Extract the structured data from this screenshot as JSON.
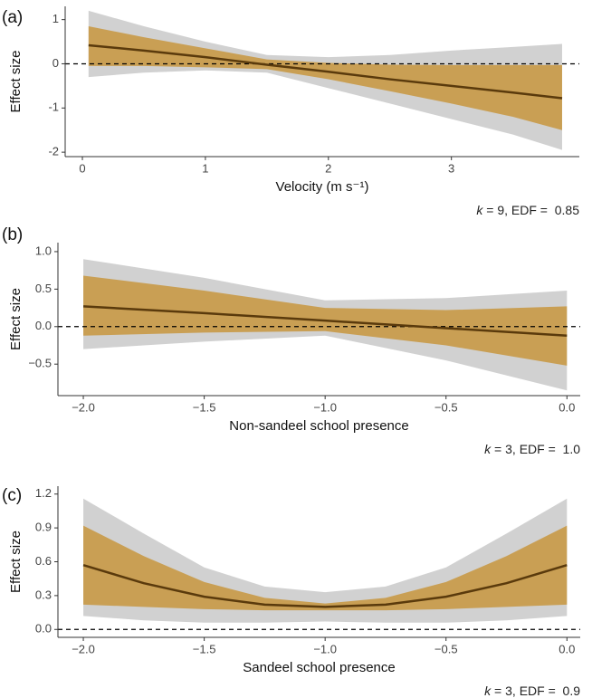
{
  "chart_data": [
    {
      "type": "line",
      "panel_label": "(a)",
      "y_label": "Effect size",
      "x_label": "Velocity (m s⁻¹)",
      "annotation": [
        "k",
        " = 9, EDF =  0.85"
      ],
      "x": [
        0.05,
        0.5,
        1,
        1.5,
        2,
        2.5,
        3,
        3.5,
        3.9
      ],
      "bands": [
        {
          "color": "#bdbdbd",
          "lower": [
            -0.3,
            -0.2,
            -0.15,
            -0.2,
            -0.55,
            -0.9,
            -1.25,
            -1.6,
            -1.95
          ],
          "upper": [
            1.2,
            0.85,
            0.5,
            0.2,
            0.15,
            0.2,
            0.3,
            0.38,
            0.45
          ]
        },
        {
          "color": "#c8963e",
          "lower": [
            -0.05,
            -0.05,
            -0.08,
            -0.12,
            -0.35,
            -0.62,
            -0.9,
            -1.2,
            -1.5
          ],
          "upper": [
            0.85,
            0.6,
            0.35,
            0.1,
            0.02,
            -0.02,
            -0.03,
            -0.03,
            -0.03
          ]
        }
      ],
      "series": [
        {
          "color": "#5a3a0c",
          "values": [
            0.42,
            0.3,
            0.15,
            -0.02,
            -0.18,
            -0.35,
            -0.5,
            -0.65,
            -0.78
          ]
        }
      ],
      "reference_line": 0,
      "xlim": [
        -0.14,
        4.04
      ],
      "ylim": [
        -2.1,
        1.3
      ],
      "xticks": [
        0,
        1,
        2,
        3
      ],
      "yticks": [
        -2,
        -1,
        0,
        1
      ]
    },
    {
      "type": "line",
      "panel_label": "(b)",
      "y_label": "Effect size",
      "x_label": "Non-sandeel school presence",
      "annotation": [
        "k",
        " = 3, EDF =  1.0"
      ],
      "x": [
        -2,
        -1.5,
        -1,
        -0.5,
        0
      ],
      "bands": [
        {
          "color": "#bdbdbd",
          "lower": [
            -0.3,
            -0.2,
            -0.12,
            -0.45,
            -0.85
          ],
          "upper": [
            0.9,
            0.65,
            0.35,
            0.38,
            0.48
          ]
        },
        {
          "color": "#c8963e",
          "lower": [
            -0.12,
            -0.08,
            -0.06,
            -0.25,
            -0.52
          ],
          "upper": [
            0.68,
            0.48,
            0.25,
            0.22,
            0.27
          ]
        }
      ],
      "series": [
        {
          "color": "#5a3a0c",
          "values": [
            0.27,
            0.18,
            0.08,
            -0.02,
            -0.12
          ]
        }
      ],
      "reference_line": 0,
      "xlim": [
        -2.105,
        0.055
      ],
      "ylim": [
        -0.92,
        1.12
      ],
      "xticks": [
        {
          "value": -2,
          "label": "−2.0"
        },
        {
          "value": -1.5,
          "label": "−1.5"
        },
        {
          "value": -1,
          "label": "−1.0"
        },
        {
          "value": -0.5,
          "label": "−0.5"
        },
        {
          "value": 0,
          "label": "0.0"
        }
      ],
      "yticks": [
        {
          "value": -0.5,
          "label": "−0.5"
        },
        {
          "value": 0,
          "label": "0.0"
        },
        {
          "value": 0.5,
          "label": "0.5"
        },
        {
          "value": 1,
          "label": "1.0"
        }
      ]
    },
    {
      "type": "line",
      "panel_label": "(c)",
      "y_label": "Effect size",
      "x_label": "Sandeel school presence",
      "annotation": [
        "k",
        " = 3, EDF =  0.9"
      ],
      "x": [
        -2,
        -1.75,
        -1.5,
        -1.25,
        -1,
        -0.75,
        -0.5,
        -0.25,
        0
      ],
      "bands": [
        {
          "color": "#bdbdbd",
          "lower": [
            0.12,
            0.08,
            0.06,
            0.06,
            0.07,
            0.06,
            0.06,
            0.08,
            0.12
          ],
          "upper": [
            1.16,
            0.85,
            0.55,
            0.38,
            0.33,
            0.38,
            0.55,
            0.85,
            1.16
          ]
        },
        {
          "color": "#c8963e",
          "lower": [
            0.22,
            0.2,
            0.18,
            0.17,
            0.17,
            0.17,
            0.18,
            0.2,
            0.22
          ],
          "upper": [
            0.92,
            0.65,
            0.42,
            0.28,
            0.23,
            0.28,
            0.42,
            0.65,
            0.92
          ]
        }
      ],
      "series": [
        {
          "color": "#5a3a0c",
          "values": [
            0.57,
            0.41,
            0.29,
            0.22,
            0.2,
            0.22,
            0.29,
            0.41,
            0.57
          ]
        }
      ],
      "reference_line": 0,
      "xlim": [
        -2.105,
        0.055
      ],
      "ylim": [
        -0.07,
        1.27
      ],
      "xticks": [
        {
          "value": -2,
          "label": "−2.0"
        },
        {
          "value": -1.5,
          "label": "−1.5"
        },
        {
          "value": -1,
          "label": "−1.0"
        },
        {
          "value": -0.5,
          "label": "−0.5"
        },
        {
          "value": 0,
          "label": "0.0"
        }
      ],
      "yticks": [
        {
          "value": 0,
          "label": "0.0"
        },
        {
          "value": 0.3,
          "label": "0.3"
        },
        {
          "value": 0.6,
          "label": "0.6"
        },
        {
          "value": 0.9,
          "label": "0.9"
        },
        {
          "value": 1.2,
          "label": "1.2"
        }
      ]
    }
  ]
}
